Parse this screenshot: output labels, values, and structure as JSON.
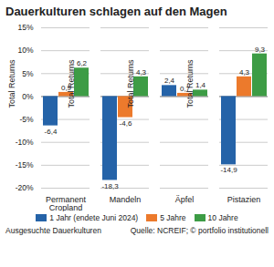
{
  "chart_data": {
    "type": "bar",
    "title": "Dauerkulturen schlagen auf den Magen",
    "y_label": "Total Returns",
    "x_label": "Ausgesuchte Dauerkulturen",
    "source": "Quelle: NCREIF; © portfolio institutionell",
    "categories": [
      "Permanent Cropland",
      "Mandeln",
      "Äpfel",
      "Pistazien"
    ],
    "series": [
      {
        "name": "1 Jahr (endete Juni 2024)",
        "color": "#2563a8",
        "values": [
          -6.4,
          -18.3,
          2.4,
          -14.9
        ],
        "value_labels": [
          "-6,4",
          "-18,3",
          "2,4",
          "-14,9"
        ]
      },
      {
        "name": "5 Jahre",
        "color": "#ec7a2c",
        "values": [
          0.9,
          -4.6,
          0.7,
          4.3
        ],
        "value_labels": [
          "0,9",
          "-4,6",
          "0,7",
          "4,3"
        ]
      },
      {
        "name": "10 Jahre",
        "color": "#3d9c45",
        "values": [
          6.2,
          4.3,
          1.4,
          9.3
        ],
        "value_labels": [
          "6,2",
          "4,3",
          "1,4",
          "9,3"
        ]
      }
    ],
    "ylim": [
      -20,
      15
    ],
    "yticks": [
      {
        "value": -20,
        "label": "-20%"
      },
      {
        "value": -15,
        "label": "-15%"
      },
      {
        "value": -10,
        "label": "-10%"
      },
      {
        "value": -5,
        "label": "-5%"
      },
      {
        "value": 0,
        "label": "0%"
      },
      {
        "value": 5,
        "label": "5%"
      },
      {
        "value": 10,
        "label": "10%"
      },
      {
        "value": 15,
        "label": "15%"
      }
    ],
    "grid": true,
    "data_labels": true,
    "legend": "bottom"
  }
}
